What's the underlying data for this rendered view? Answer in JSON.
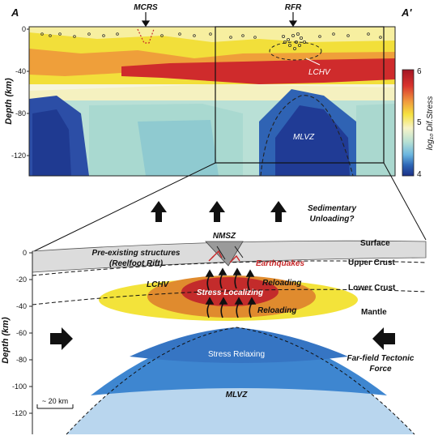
{
  "top_panel": {
    "label_a": "A",
    "label_a_prime": "A'",
    "marker_mcrs": "MCRS",
    "marker_rfr": "RFR",
    "ylabel": "Depth (km)",
    "yticks": [
      "0",
      "-40",
      "-80",
      "-120"
    ],
    "label_lchv": "LCHV",
    "label_mlvz": "MLVZ",
    "colorbar_label": "log₁₀ Dif.Stress",
    "colorbar_ticks": [
      "6",
      "5",
      "4"
    ]
  },
  "middle": {
    "sedimentary_line1": "Sedimentary",
    "sedimentary_line2": "Unloading?"
  },
  "bottom_panel": {
    "ylabel": "Depth (km)",
    "yticks": [
      "0",
      "-20",
      "-40",
      "-60",
      "-80",
      "-100",
      "-120"
    ],
    "nmsz": "NMSZ",
    "preexisting_line1": "Pre-existing structures",
    "preexisting_line2": "(Reelfoot Rift)",
    "earthquakes": "Earthquakes",
    "lchv": "LCHV",
    "stress_localizing": "Stress Localizing",
    "reloading_upper": "Reloading",
    "reloading_lower": "Reloading",
    "surface": "Surface",
    "upper_crust": "Upper Crust",
    "lower_crust": "Lower Crust",
    "mantle": "Mantle",
    "stress_relaxing": "Stress Relaxing",
    "mlvz": "MLVZ",
    "far_field_line1": "Far-field Tectonic",
    "far_field_line2": "Force",
    "scale_bar": "~ 20 km"
  },
  "colors": {
    "red": "#c8282a",
    "orange": "#e9963a",
    "yellow": "#f3e33a",
    "pale_yellow": "#f6f1b0",
    "teal": "#9fd3c8",
    "light_blue": "#6fb3dd",
    "blue": "#2a63b3",
    "dark_blue": "#1c3b8e",
    "gray": "#dcdcdc"
  }
}
